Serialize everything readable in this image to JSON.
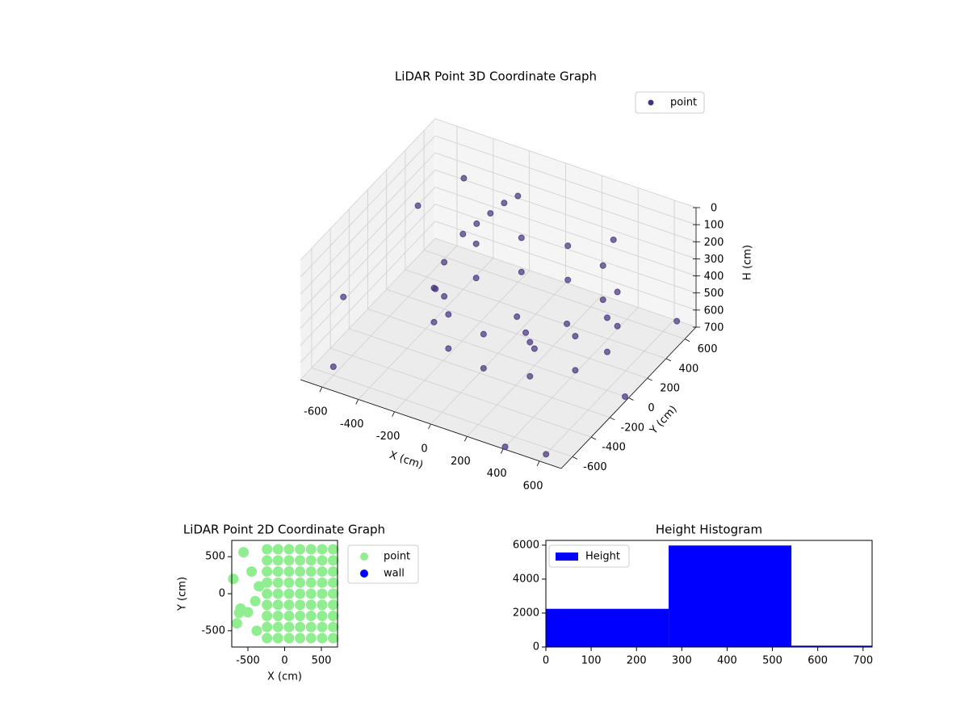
{
  "chart_data": [
    {
      "type": "scatter3d",
      "title": "LiDAR Point 3D Coordinate Graph",
      "xlabel": "X (cm)",
      "ylabel": "Y (cm)",
      "zlabel": "H (cm)",
      "xlim": [
        -720,
        720
      ],
      "ylim": [
        -720,
        720
      ],
      "zlim": [
        700,
        0
      ],
      "xticks": [
        -600,
        -400,
        -200,
        0,
        200,
        400,
        600
      ],
      "yticks": [
        -600,
        -400,
        -200,
        0,
        200,
        400,
        600
      ],
      "zticks": [
        0,
        100,
        200,
        300,
        400,
        500,
        600,
        700
      ],
      "grid": true,
      "legend": "upper right",
      "series": [
        {
          "name": "point",
          "color": "#46327e",
          "x": [
            550,
            490,
            325,
            100,
            -125,
            -290,
            -350,
            -290,
            -125,
            100,
            325,
            490,
            550,
            490,
            325,
            100,
            -125,
            -290,
            -350,
            -290,
            -125,
            100,
            325,
            490,
            -200,
            -250,
            -300,
            -150,
            -350,
            100,
            200,
            0,
            250,
            -650,
            -700,
            -500,
            600,
            650,
            -600,
            400,
            700,
            -450,
            300
          ],
          "y": [
            100,
            325,
            490,
            550,
            490,
            325,
            100,
            -125,
            -290,
            -350,
            -290,
            -125,
            100,
            325,
            490,
            550,
            490,
            325,
            100,
            -125,
            -290,
            -350,
            -290,
            -125,
            450,
            400,
            350,
            500,
            300,
            100,
            0,
            200,
            250,
            400,
            -300,
            600,
            -650,
            650,
            -600,
            -700,
            0,
            200,
            650
          ],
          "z": [
            350,
            350,
            350,
            350,
            350,
            350,
            350,
            350,
            350,
            350,
            350,
            350,
            550,
            550,
            550,
            550,
            550,
            550,
            550,
            550,
            550,
            550,
            550,
            550,
            150,
            200,
            250,
            120,
            300,
            600,
            600,
            600,
            580,
            300,
            450,
            200,
            700,
            650,
            650,
            700,
            700,
            600,
            300
          ]
        }
      ]
    },
    {
      "type": "scatter",
      "title": "LiDAR Point 2D Coordinate Graph",
      "xlabel": "X (cm)",
      "ylabel": "Y (cm)",
      "xlim": [
        -720,
        720
      ],
      "ylim": [
        -720,
        720
      ],
      "xticks": [
        -500,
        0,
        500
      ],
      "yticks": [
        -500,
        0,
        500
      ],
      "legend": "outside right",
      "series": [
        {
          "name": "point",
          "color": "#90ee90",
          "x": [
            -240,
            -240,
            -240,
            -240,
            -240,
            -240,
            -240,
            -240,
            -240,
            -90,
            -90,
            -90,
            -90,
            -90,
            -90,
            -90,
            -90,
            -90,
            60,
            60,
            60,
            60,
            60,
            60,
            60,
            60,
            60,
            210,
            210,
            210,
            210,
            210,
            210,
            210,
            210,
            210,
            360,
            360,
            360,
            360,
            360,
            360,
            360,
            360,
            360,
            510,
            510,
            510,
            510,
            510,
            510,
            510,
            510,
            510,
            660,
            660,
            660,
            660,
            660,
            660,
            660,
            660,
            660,
            -600,
            -500,
            -650,
            -400,
            -700,
            -450,
            -560,
            -350,
            -380,
            -620
          ],
          "y": [
            -600,
            -450,
            -300,
            -150,
            0,
            150,
            300,
            450,
            600,
            -600,
            -450,
            -300,
            -150,
            0,
            150,
            300,
            450,
            600,
            -600,
            -450,
            -300,
            -150,
            0,
            150,
            300,
            450,
            600,
            -600,
            -450,
            -300,
            -150,
            0,
            150,
            300,
            450,
            600,
            -600,
            -450,
            -300,
            -150,
            0,
            150,
            300,
            450,
            600,
            -600,
            -450,
            -300,
            -150,
            0,
            150,
            300,
            450,
            600,
            -600,
            -450,
            -300,
            -150,
            0,
            150,
            300,
            450,
            600,
            -200,
            -250,
            -400,
            -100,
            200,
            300,
            560,
            100,
            -500,
            -260
          ]
        },
        {
          "name": "wall",
          "color": "#0000ff",
          "x": [],
          "y": []
        }
      ]
    },
    {
      "type": "histogram",
      "title": "Height Histogram",
      "name": "Height",
      "color": "#0000ff",
      "bins": [
        0,
        271,
        542,
        813
      ],
      "values": [
        2250,
        5980,
        80
      ],
      "xlim": [
        0,
        720
      ],
      "ylim": [
        0,
        6280
      ],
      "xticks": [
        0,
        100,
        200,
        300,
        400,
        500,
        600,
        700
      ],
      "yticks": [
        0,
        2000,
        4000,
        6000
      ],
      "legend": "upper left"
    }
  ]
}
